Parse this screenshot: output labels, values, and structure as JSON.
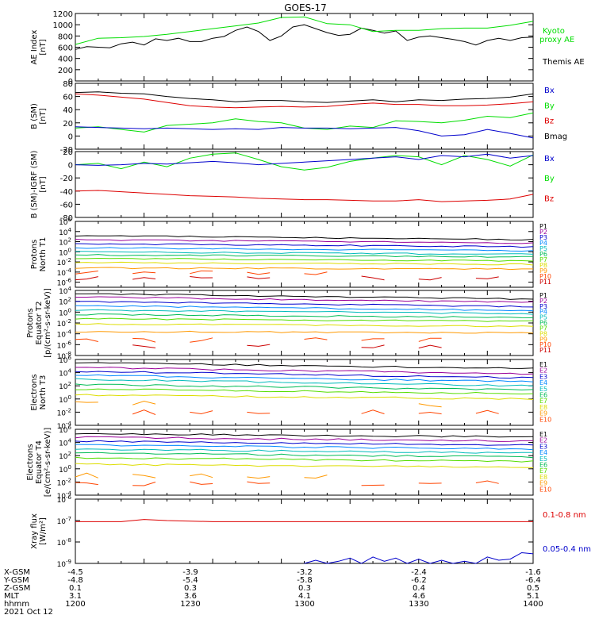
{
  "title": "GOES-17",
  "colors": {
    "black": "#000000",
    "green": "#00dd00",
    "blue": "#0000cc",
    "red": "#dd0000",
    "P": [
      "#000000",
      "#990099",
      "#0000cc",
      "#0088ff",
      "#00bbbb",
      "#00bb55",
      "#55dd00",
      "#dddd00",
      "#ff9900",
      "#ff4400",
      "#cc0000"
    ],
    "E": [
      "#000000",
      "#990099",
      "#0000cc",
      "#0088ff",
      "#00bbbb",
      "#00bb55",
      "#55dd00",
      "#dddd00",
      "#ff9900",
      "#ff4400",
      "#cc0000"
    ]
  },
  "chart_data": [
    {
      "id": "ae",
      "type": "line",
      "ylabel": [
        "AE Index",
        "[nT]"
      ],
      "ylim": [
        0,
        1200
      ],
      "yticks": [
        "0",
        "200",
        "400",
        "600",
        "800",
        "1000",
        "1200"
      ],
      "xlim": [
        1200,
        1400
      ],
      "legend": [
        {
          "name": "Kyoto",
          "color": "green"
        },
        {
          "name": "proxy AE",
          "color": "green"
        },
        {
          "name": "Themis AE",
          "color": "black"
        }
      ],
      "series": [
        {
          "name": "Themis AE",
          "color": "black",
          "x": [
            1200,
            1205,
            1210,
            1215,
            1220,
            1225,
            1230,
            1235,
            1240,
            1245,
            1250,
            1255,
            1260,
            1265,
            1270,
            1275,
            1280,
            1285,
            1290,
            1295,
            1300,
            1305,
            1310,
            1315,
            1320,
            1325,
            1330,
            1335,
            1340,
            1345,
            1350,
            1355,
            1360,
            1365,
            1370,
            1375,
            1380,
            1385,
            1390,
            1395,
            1400
          ],
          "y": [
            560,
            610,
            600,
            590,
            660,
            690,
            640,
            750,
            720,
            760,
            700,
            700,
            760,
            790,
            900,
            960,
            880,
            720,
            800,
            960,
            1000,
            930,
            860,
            810,
            830,
            940,
            900,
            850,
            890,
            720,
            780,
            800,
            770,
            740,
            700,
            640,
            720,
            760,
            720,
            770,
            780
          ]
        },
        {
          "name": "Kyoto proxy AE",
          "color": "green",
          "x": [
            1200,
            1210,
            1220,
            1230,
            1240,
            1250,
            1260,
            1270,
            1280,
            1290,
            1300,
            1310,
            1320,
            1330,
            1340,
            1350,
            1360,
            1370,
            1380,
            1390,
            1400
          ],
          "y": [
            650,
            760,
            770,
            790,
            830,
            880,
            930,
            980,
            1030,
            1130,
            1140,
            1020,
            1000,
            880,
            900,
            900,
            930,
            940,
            940,
            990,
            1060
          ]
        }
      ]
    },
    {
      "id": "bsm",
      "type": "line",
      "ylabel": [
        "B (SM)",
        "[nT]"
      ],
      "ylim": [
        -20,
        80
      ],
      "yticks": [
        "-20",
        "0",
        "20",
        "40",
        "60",
        "80"
      ],
      "xlim": [
        1200,
        1400
      ],
      "legend": [
        {
          "name": "Bx",
          "color": "blue"
        },
        {
          "name": "By",
          "color": "green"
        },
        {
          "name": "Bz",
          "color": "red"
        },
        {
          "name": "Bmag",
          "color": "black"
        }
      ],
      "series": [
        {
          "name": "Bmag",
          "color": "black",
          "x": [
            1200,
            1210,
            1220,
            1230,
            1240,
            1250,
            1260,
            1270,
            1280,
            1290,
            1300,
            1310,
            1320,
            1330,
            1340,
            1350,
            1360,
            1370,
            1380,
            1390,
            1400
          ],
          "y": [
            66,
            67,
            65,
            64,
            60,
            57,
            55,
            52,
            54,
            54,
            52,
            51,
            53,
            55,
            52,
            55,
            54,
            56,
            57,
            59,
            64
          ]
        },
        {
          "name": "Bz",
          "color": "red",
          "x": [
            1200,
            1210,
            1220,
            1230,
            1240,
            1250,
            1260,
            1270,
            1280,
            1290,
            1300,
            1310,
            1320,
            1330,
            1340,
            1350,
            1360,
            1370,
            1380,
            1390,
            1400
          ],
          "y": [
            64,
            62,
            59,
            56,
            51,
            46,
            44,
            43,
            44,
            45,
            44,
            45,
            48,
            50,
            48,
            48,
            46,
            46,
            47,
            49,
            52
          ]
        },
        {
          "name": "By",
          "color": "green",
          "x": [
            1200,
            1210,
            1220,
            1230,
            1240,
            1250,
            1260,
            1270,
            1280,
            1290,
            1300,
            1310,
            1320,
            1330,
            1340,
            1350,
            1360,
            1370,
            1380,
            1390,
            1400
          ],
          "y": [
            12,
            14,
            10,
            6,
            16,
            18,
            20,
            26,
            22,
            20,
            12,
            10,
            15,
            13,
            23,
            22,
            20,
            24,
            30,
            28,
            35
          ]
        },
        {
          "name": "Bx",
          "color": "blue",
          "x": [
            1200,
            1210,
            1220,
            1230,
            1240,
            1250,
            1260,
            1270,
            1280,
            1290,
            1300,
            1310,
            1320,
            1330,
            1340,
            1350,
            1360,
            1370,
            1380,
            1390,
            1400
          ],
          "y": [
            14,
            13,
            12,
            11,
            12,
            11,
            10,
            11,
            10,
            13,
            12,
            12,
            11,
            12,
            13,
            8,
            0,
            2,
            10,
            4,
            -3
          ]
        }
      ]
    },
    {
      "id": "bigrf",
      "type": "line",
      "ylabel": [
        "B (SM)-IGRF (SM)",
        "[nT]"
      ],
      "ylim": [
        -80,
        20
      ],
      "yticks": [
        "-80",
        "-60",
        "-40",
        "-20",
        "0",
        "20"
      ],
      "xlim": [
        1200,
        1400
      ],
      "legend": [
        {
          "name": "Bx",
          "color": "blue"
        },
        {
          "name": "By",
          "color": "green"
        },
        {
          "name": "Bz",
          "color": "red"
        }
      ],
      "series": [
        {
          "name": "Bz",
          "color": "red",
          "x": [
            1200,
            1210,
            1220,
            1230,
            1240,
            1250,
            1260,
            1270,
            1280,
            1290,
            1300,
            1310,
            1320,
            1330,
            1340,
            1350,
            1360,
            1370,
            1380,
            1390,
            1400
          ],
          "y": [
            -40,
            -39,
            -41,
            -43,
            -45,
            -47,
            -48,
            -49,
            -51,
            -52,
            -53,
            -53,
            -54,
            -55,
            -55,
            -53,
            -56,
            -55,
            -54,
            -52,
            -45
          ]
        },
        {
          "name": "By",
          "color": "green",
          "x": [
            1200,
            1210,
            1220,
            1230,
            1240,
            1250,
            1260,
            1270,
            1280,
            1290,
            1300,
            1310,
            1320,
            1330,
            1340,
            1350,
            1360,
            1370,
            1380,
            1390,
            1400
          ],
          "y": [
            0,
            2,
            -6,
            4,
            -3,
            10,
            16,
            18,
            8,
            -3,
            -8,
            -4,
            5,
            10,
            14,
            12,
            0,
            14,
            8,
            -2,
            15
          ]
        },
        {
          "name": "Bx",
          "color": "blue",
          "x": [
            1200,
            1210,
            1220,
            1230,
            1240,
            1250,
            1260,
            1270,
            1280,
            1290,
            1300,
            1310,
            1320,
            1330,
            1340,
            1350,
            1360,
            1370,
            1380,
            1390,
            1400
          ],
          "y": [
            0,
            -1,
            0,
            2,
            1,
            3,
            5,
            3,
            0,
            2,
            4,
            6,
            8,
            10,
            12,
            8,
            14,
            12,
            16,
            10,
            14
          ]
        }
      ]
    },
    {
      "id": "pt1",
      "type": "line",
      "yscale": "log",
      "ylabel": [
        "Protons",
        "North T1"
      ],
      "ylim": [
        -7,
        6
      ],
      "yticks": [
        {
          "exp": -6
        },
        {
          "exp": -4
        },
        {
          "exp": -2
        },
        {
          "exp": 0
        },
        {
          "exp": 2
        },
        {
          "exp": 4
        },
        {
          "exp": 6
        }
      ],
      "xlim": [
        1200,
        1400
      ],
      "legend_prefix": "P",
      "channels": [
        {
          "name": "P1",
          "log": 3.2,
          "end": 2.4
        },
        {
          "name": "P2",
          "log": 2.4,
          "end": 1.7
        },
        {
          "name": "P3",
          "log": 1.6,
          "end": 1.0
        },
        {
          "name": "P4",
          "log": 0.8,
          "end": 0.2
        },
        {
          "name": "P5",
          "log": 0.0,
          "end": -0.5
        },
        {
          "name": "P6",
          "log": -0.6,
          "end": -1.0
        },
        {
          "name": "P7",
          "log": -1.3,
          "end": -1.8
        },
        {
          "name": "P8",
          "log": -2.1,
          "end": -2.5
        },
        {
          "name": "P9",
          "log": -3.2,
          "end": -3.4
        },
        {
          "name": "P10",
          "log": -4.1,
          "end": -4.1
        },
        {
          "name": "P11",
          "log": -5.2,
          "end": -5.2
        }
      ]
    },
    {
      "id": "pt2",
      "type": "line",
      "yscale": "log",
      "ylabel": [
        "Protons",
        "Equator T2",
        "[p/(cm²-s-sr-keV)]"
      ],
      "ylim": [
        -8,
        4
      ],
      "yticks": [
        {
          "exp": -8
        },
        {
          "exp": -6
        },
        {
          "exp": -4
        },
        {
          "exp": -2
        },
        {
          "exp": 0
        },
        {
          "exp": 2
        },
        {
          "exp": 4
        }
      ],
      "xlim": [
        1200,
        1400
      ],
      "channels": [
        {
          "name": "P1",
          "log": 3.4,
          "end": 2.4
        },
        {
          "name": "P2",
          "log": 2.8,
          "end": 1.8
        },
        {
          "name": "P3",
          "log": 2.0,
          "end": 1.0
        },
        {
          "name": "P4",
          "log": 1.2,
          "end": 0.3
        },
        {
          "name": "P5",
          "log": 0.4,
          "end": -0.3
        },
        {
          "name": "P6",
          "log": -0.4,
          "end": -1.0
        },
        {
          "name": "P7",
          "log": -1.2,
          "end": -1.7
        },
        {
          "name": "P8",
          "log": -2.2,
          "end": -2.6
        },
        {
          "name": "P9",
          "log": -3.6,
          "end": -3.8
        },
        {
          "name": "P10",
          "log": -5.2,
          "end": -5.0
        },
        {
          "name": "P11",
          "log": -6.3,
          "end": -6.3
        }
      ]
    },
    {
      "id": "et3",
      "type": "line",
      "yscale": "log",
      "ylabel": [
        "Electrons",
        "North T3"
      ],
      "ylim": [
        -4,
        6
      ],
      "yticks": [
        {
          "exp": -4
        },
        {
          "exp": -2
        },
        {
          "exp": 0
        },
        {
          "exp": 2
        },
        {
          "exp": 4
        },
        {
          "exp": 6
        }
      ],
      "xlim": [
        1200,
        1400
      ],
      "channels": [
        {
          "name": "E1",
          "log": 5.5,
          "end": 4.6
        },
        {
          "name": "E2",
          "log": 4.8,
          "end": 3.8
        },
        {
          "name": "E3",
          "log": 4.2,
          "end": 3.2
        },
        {
          "name": "E4",
          "log": 3.6,
          "end": 2.6
        },
        {
          "name": "E5",
          "log": 3.0,
          "end": 2.0
        },
        {
          "name": "E6",
          "log": 2.2,
          "end": 1.4
        },
        {
          "name": "E7",
          "log": 1.5,
          "end": 0.8
        },
        {
          "name": "E8",
          "log": 0.6,
          "end": 0.0
        },
        {
          "name": "E9",
          "log": -0.6,
          "end": -1.1
        },
        {
          "name": "E10",
          "log": -2.0,
          "end": -2.0
        }
      ]
    },
    {
      "id": "et4",
      "type": "line",
      "yscale": "log",
      "ylabel": [
        "Electrons",
        "Equator T4",
        "[e/(cm²-s-sr-keV)]"
      ],
      "ylim": [
        -4,
        6
      ],
      "yticks": [
        {
          "exp": -4
        },
        {
          "exp": -2
        },
        {
          "exp": 0
        },
        {
          "exp": 2
        },
        {
          "exp": 4
        },
        {
          "exp": 6
        }
      ],
      "xlim": [
        1200,
        1400
      ],
      "channels": [
        {
          "name": "E1",
          "log": 5.4,
          "end": 4.8
        },
        {
          "name": "E2",
          "log": 4.8,
          "end": 4.2
        },
        {
          "name": "E3",
          "log": 4.2,
          "end": 3.6
        },
        {
          "name": "E4",
          "log": 3.6,
          "end": 3.0
        },
        {
          "name": "E5",
          "log": 3.0,
          "end": 2.4
        },
        {
          "name": "E6",
          "log": 2.4,
          "end": 1.8
        },
        {
          "name": "E7",
          "log": 1.7,
          "end": 1.1
        },
        {
          "name": "E8",
          "log": 0.7,
          "end": 0.2
        },
        {
          "name": "E9",
          "log": -1.0,
          "end": -1.3
        },
        {
          "name": "E10",
          "log": -2.2,
          "end": -2.2
        }
      ]
    },
    {
      "id": "xray",
      "type": "line",
      "yscale": "log",
      "ylabel": [
        "Xray flux",
        "[W/m²]"
      ],
      "ylim": [
        -9,
        -6
      ],
      "yticks": [
        {
          "exp": -9
        },
        {
          "exp": -8
        },
        {
          "exp": -7
        },
        {
          "exp": -6
        }
      ],
      "xlim": [
        1200,
        1400
      ],
      "legend": [
        {
          "name": "0.1-0.8 nm",
          "color": "red"
        },
        {
          "name": "0.05-0.4 nm",
          "color": "blue"
        }
      ],
      "series": [
        {
          "name": "0.1-0.8 nm",
          "color": "red",
          "x": [
            1200,
            1220,
            1230,
            1240,
            1260,
            1280,
            1300,
            1320,
            1340,
            1360,
            1380,
            1400
          ],
          "y": [
            -7.05,
            -7.05,
            -6.95,
            -7.0,
            -7.05,
            -7.05,
            -7.05,
            -7.05,
            -7.05,
            -7.05,
            -7.05,
            -7.05
          ]
        },
        {
          "name": "0.05-0.4 nm",
          "color": "blue",
          "x": [
            1300,
            1305,
            1310,
            1315,
            1320,
            1325,
            1330,
            1335,
            1340,
            1345,
            1350,
            1355,
            1360,
            1365,
            1370,
            1375,
            1380,
            1385,
            1390,
            1395,
            1400
          ],
          "y": [
            -9.0,
            -8.85,
            -9.0,
            -8.9,
            -8.75,
            -9.0,
            -8.7,
            -8.9,
            -8.75,
            -9.0,
            -8.8,
            -9.0,
            -8.85,
            -9.0,
            -8.9,
            -9.0,
            -8.7,
            -8.85,
            -8.8,
            -8.5,
            -8.55
          ]
        }
      ]
    }
  ],
  "xaxis": {
    "rows": [
      {
        "label": "X-GSM",
        "values": [
          "-4.5",
          "-3.9",
          "-3.2",
          "-2.4",
          "-1.6"
        ]
      },
      {
        "label": "Y-GSM",
        "values": [
          "-4.8",
          "-5.4",
          "-5.8",
          "-6.2",
          "-6.4"
        ]
      },
      {
        "label": "Z-GSM",
        "values": [
          "0.1",
          "0.3",
          "0.3",
          "0.4",
          "0.5"
        ]
      },
      {
        "label": "MLT",
        "values": [
          "3.1",
          "3.6",
          "4.1",
          "4.6",
          "5.1"
        ]
      },
      {
        "label": "hhmm",
        "values": [
          "1200",
          "1230",
          "1300",
          "1330",
          "1400"
        ]
      }
    ],
    "date": "2021 Oct 12"
  }
}
